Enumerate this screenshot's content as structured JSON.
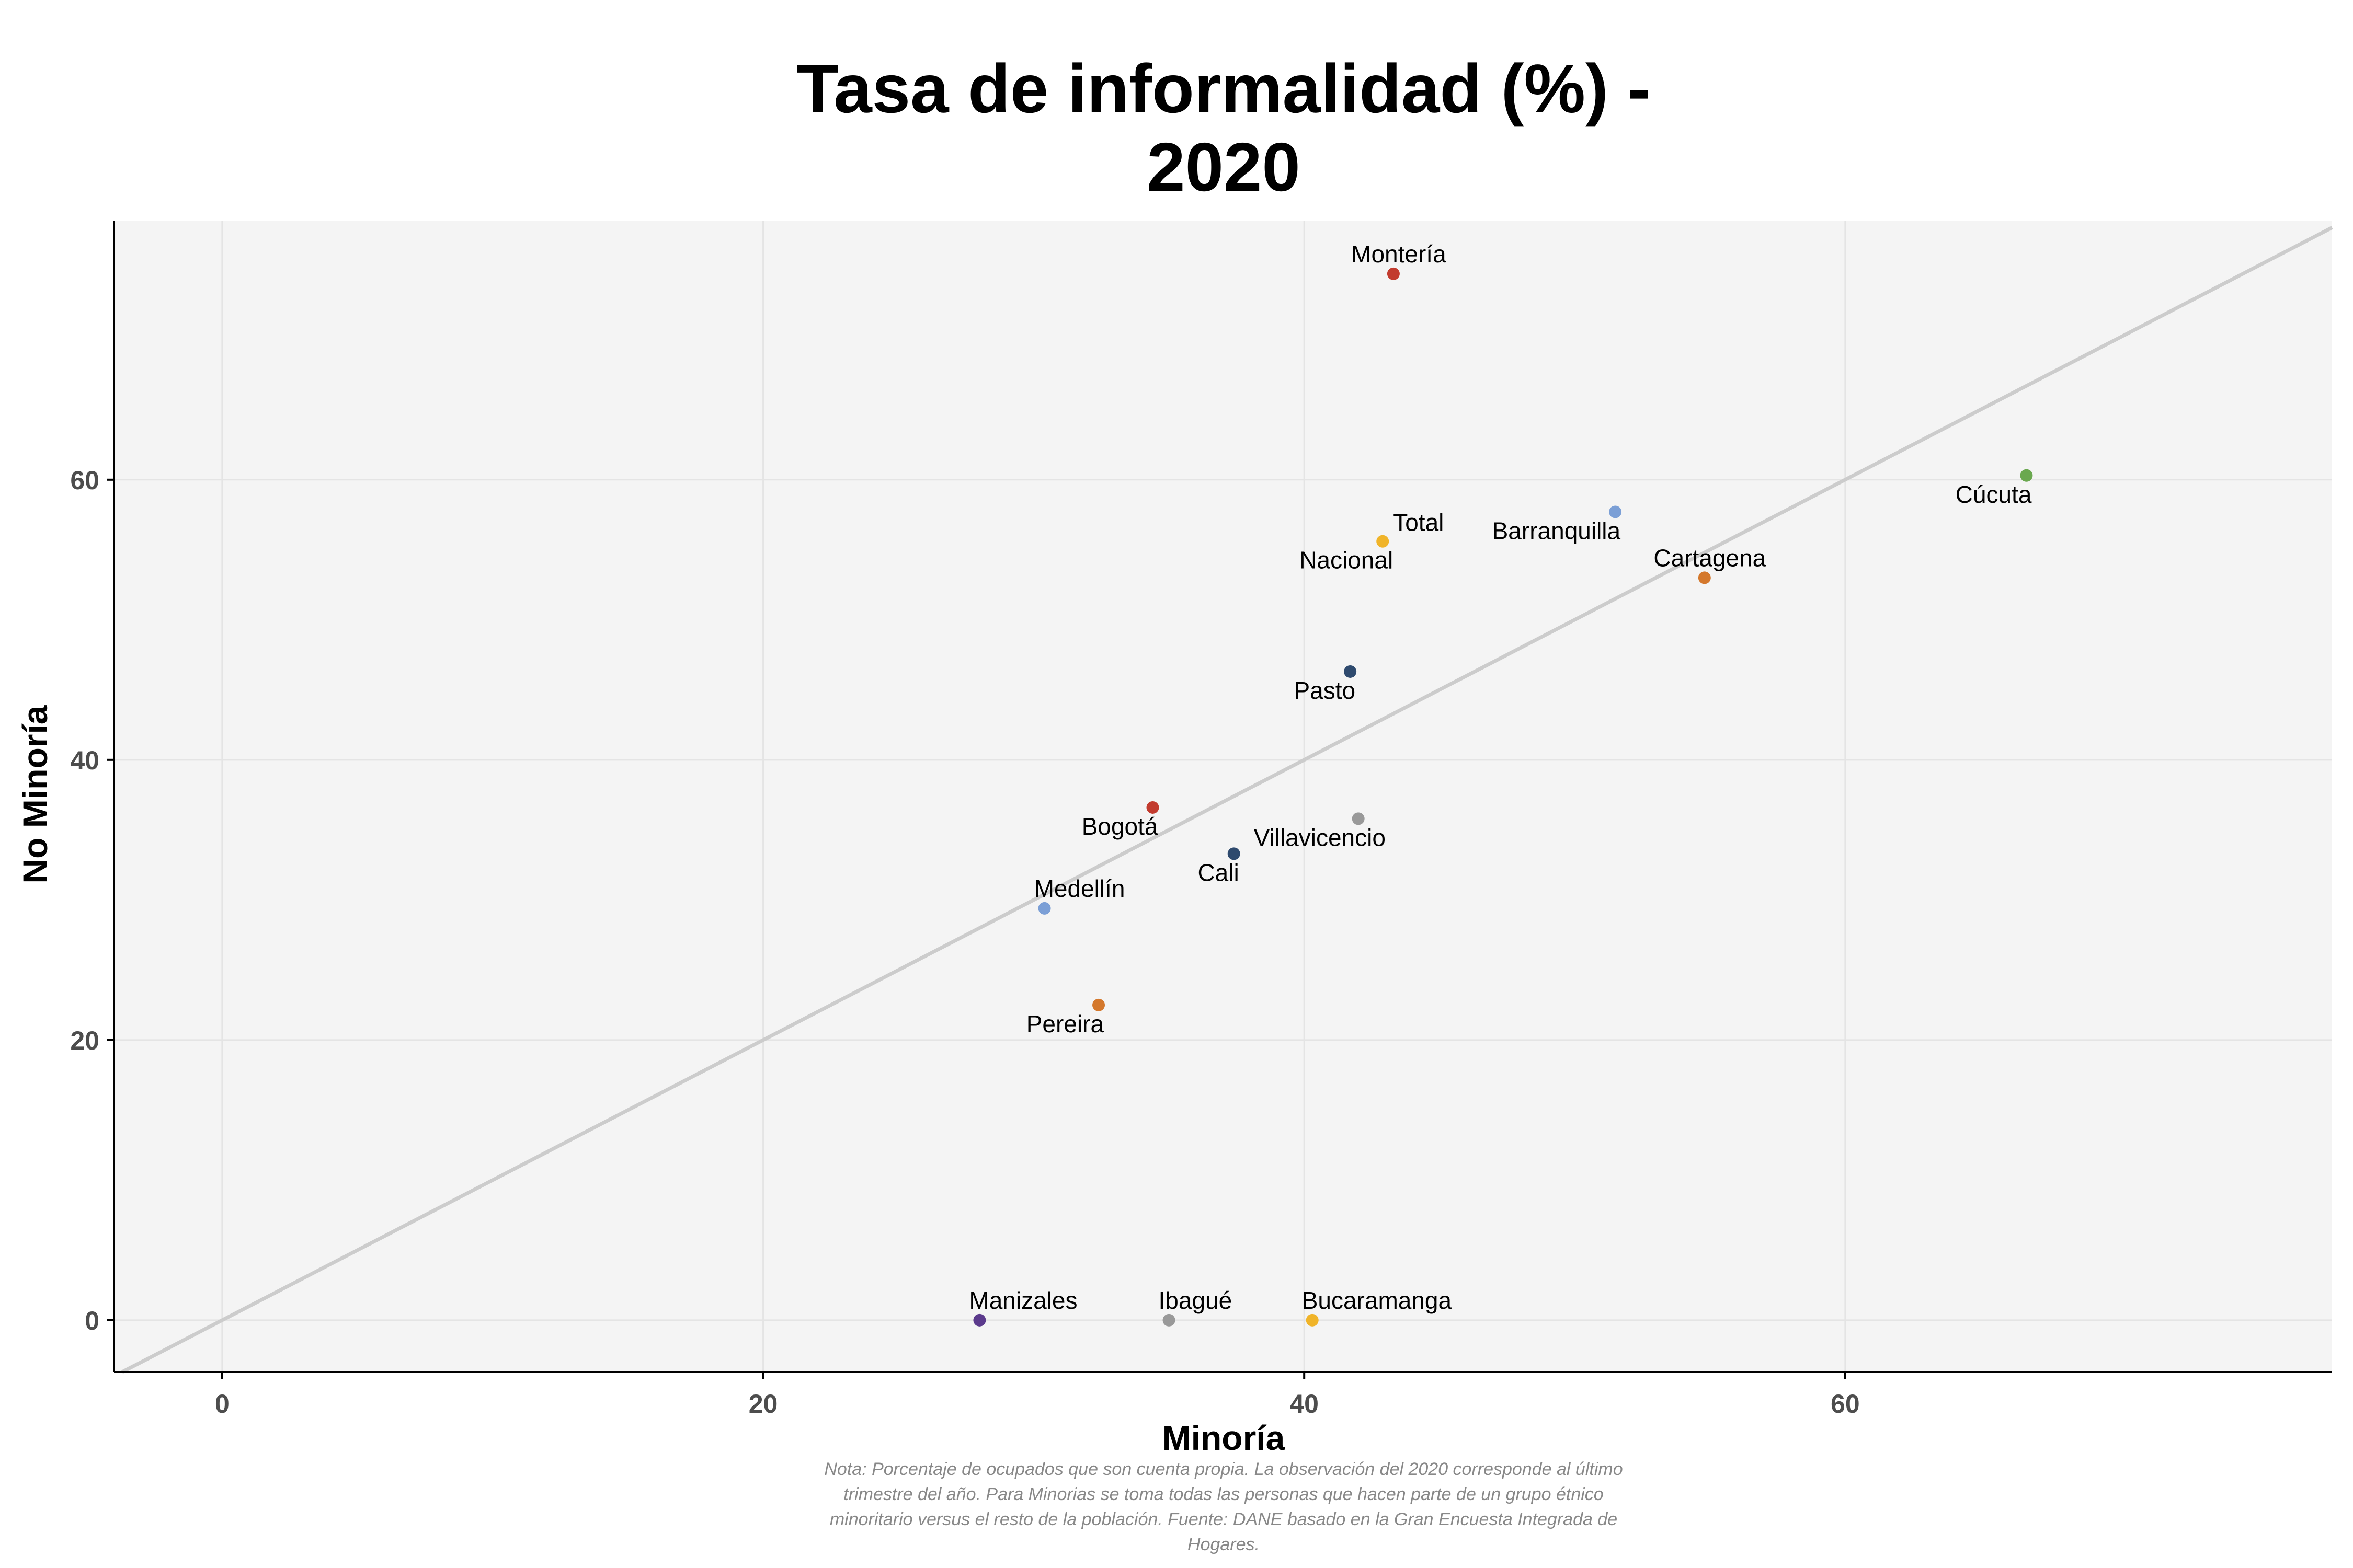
{
  "chart_data": {
    "type": "scatter",
    "title_lines": [
      "Tasa de informalidad (%) -",
      "2020"
    ],
    "xlabel": "Minoría",
    "ylabel": "No Minoría",
    "xlim": [
      -4,
      78
    ],
    "ylim": [
      -3.7,
      78.5
    ],
    "x_ticks": [
      0,
      20,
      40,
      60
    ],
    "y_ticks": [
      0,
      20,
      40,
      60
    ],
    "grid": true,
    "reference_line": "y = x",
    "points": [
      {
        "label": "Montería",
        "x": 43.3,
        "y": 74.7,
        "color": "#c23b2e",
        "label_pos": "above"
      },
      {
        "label": "Cúcuta",
        "x": 66.7,
        "y": 60.3,
        "color": "#6aa84f",
        "label_pos": "below-left"
      },
      {
        "label": "Barranquilla",
        "x": 51.5,
        "y": 57.7,
        "color": "#7b9fd6",
        "label_pos": "below-left"
      },
      {
        "label": "Total\nNacional",
        "x": 42.9,
        "y": 55.6,
        "color": "#f0b429",
        "label_pos": "split"
      },
      {
        "label": "Cartagena",
        "x": 54.8,
        "y": 53.0,
        "color": "#d4782c",
        "label_pos": "above"
      },
      {
        "label": "Pasto",
        "x": 41.7,
        "y": 46.3,
        "color": "#2e4a6e",
        "label_pos": "below-left"
      },
      {
        "label": "Bogotá",
        "x": 34.4,
        "y": 36.6,
        "color": "#c23b2e",
        "label_pos": "below-left"
      },
      {
        "label": "Villavicencio",
        "x": 42.0,
        "y": 35.8,
        "color": "#999999",
        "label_pos": "below-right-far"
      },
      {
        "label": "Cali",
        "x": 37.4,
        "y": 33.3,
        "color": "#2e4a6e",
        "label_pos": "below-left"
      },
      {
        "label": "Medellín",
        "x": 30.4,
        "y": 29.4,
        "color": "#7b9fd6",
        "label_pos": "above-right"
      },
      {
        "label": "Pereira",
        "x": 32.4,
        "y": 22.5,
        "color": "#d4782c",
        "label_pos": "below-left"
      },
      {
        "label": "Manizales",
        "x": 28.0,
        "y": 0.0,
        "color": "#5b3a8c",
        "label_pos": "above-right"
      },
      {
        "label": "Ibagué",
        "x": 35.0,
        "y": 0.0,
        "color": "#999999",
        "label_pos": "above-right"
      },
      {
        "label": "Bucaramanga",
        "x": 40.3,
        "y": 0.0,
        "color": "#f0b429",
        "label_pos": "above-right"
      }
    ],
    "colors": {
      "panel_background": "#f4f4f4",
      "grid": "#e4e4e4",
      "reference_line": "#cccccc",
      "axis": "#000000"
    }
  },
  "note_lines": [
    "Nota: Porcentaje de ocupados que son cuenta propia. La observación del 2020 corresponde al último",
    "trimestre del año. Para Minorias se toma todas las personas que hacen parte de un grupo étnico",
    "minoritario versus el resto de la población. Fuente: DANE basado en la Gran Encuesta Integrada de",
    "Hogares."
  ]
}
